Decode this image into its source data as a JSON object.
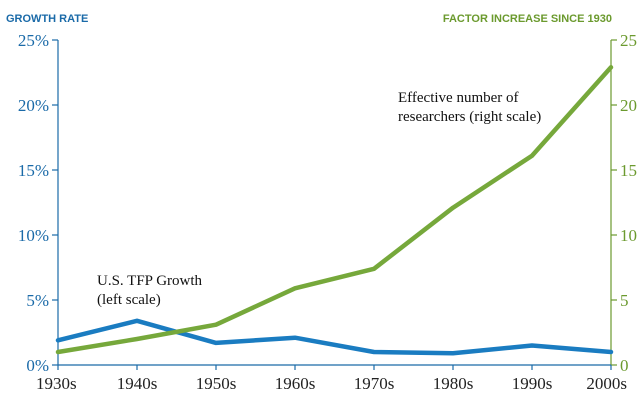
{
  "chart_data": {
    "type": "line",
    "left_axis_title": "GROWTH RATE",
    "right_axis_title": "FACTOR INCREASE SINCE 1930",
    "categories": [
      "1930s",
      "1940s",
      "1950s",
      "1960s",
      "1970s",
      "1980s",
      "1990s",
      "2000s"
    ],
    "left_ticks": [
      "0%",
      "5%",
      "10%",
      "15%",
      "20%",
      "25%"
    ],
    "right_ticks": [
      "0",
      "5",
      "10",
      "15",
      "20",
      "25"
    ],
    "left_ylim": [
      0,
      25
    ],
    "right_ylim": [
      0,
      25
    ],
    "grid": false,
    "series": [
      {
        "axis": "left",
        "color": "#1a7cc1",
        "values": [
          1.9,
          3.4,
          1.7,
          2.1,
          1.0,
          0.9,
          1.5,
          1.0
        ]
      },
      {
        "axis": "right",
        "color": "#76a83b",
        "values": [
          1.0,
          2.0,
          3.1,
          5.9,
          7.4,
          12.1,
          16.1,
          22.9
        ]
      }
    ],
    "annotations": [
      {
        "lines": [
          "U.S. TFP Growth",
          "(left scale)"
        ]
      },
      {
        "lines": [
          "Effective number of",
          "researchers (right scale)"
        ]
      }
    ],
    "colors": {
      "left_axis": "#1a6aa8",
      "right_axis": "#6b9a2e"
    }
  }
}
